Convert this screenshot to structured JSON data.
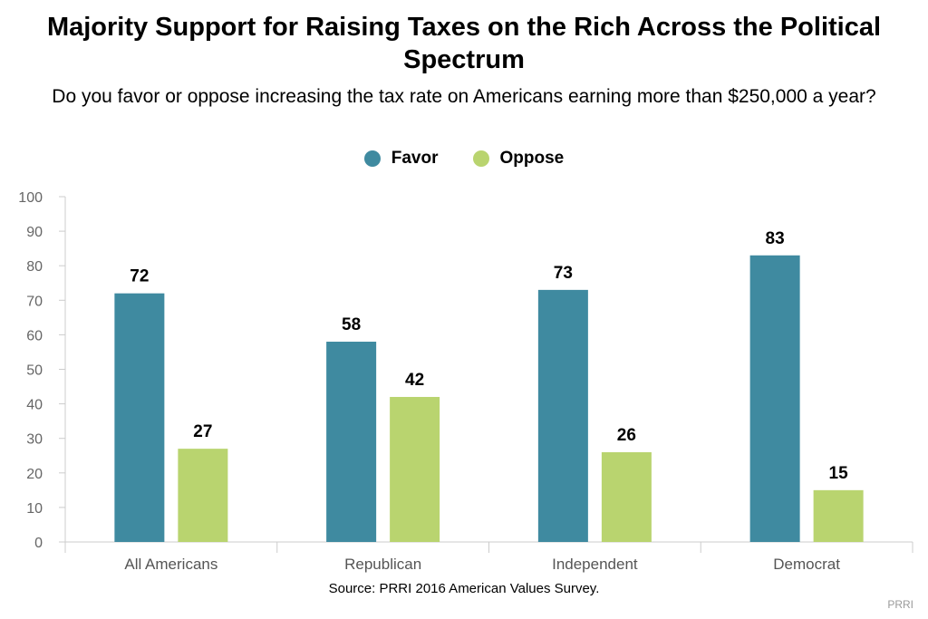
{
  "chart_data": {
    "type": "bar",
    "title": "Majority Support for Raising Taxes on the Rich Across the Political Spectrum",
    "subtitle": "Do you favor or oppose increasing the tax rate on Americans earning more than $250,000 a year?",
    "categories": [
      "All Americans",
      "Republican",
      "Independent",
      "Democrat"
    ],
    "series": [
      {
        "name": "Favor",
        "color": "#3f8aa0",
        "values": [
          72,
          58,
          73,
          83
        ]
      },
      {
        "name": "Oppose",
        "color": "#b9d46f",
        "values": [
          27,
          42,
          26,
          15
        ]
      }
    ],
    "ylim": [
      0,
      100
    ],
    "yticks": [
      0,
      10,
      20,
      30,
      40,
      50,
      60,
      70,
      80,
      90,
      100
    ],
    "legend_position": "top-center",
    "grid": false,
    "source": "Source: PRRI 2016 American Values Survey.",
    "brand": "PRRI"
  }
}
